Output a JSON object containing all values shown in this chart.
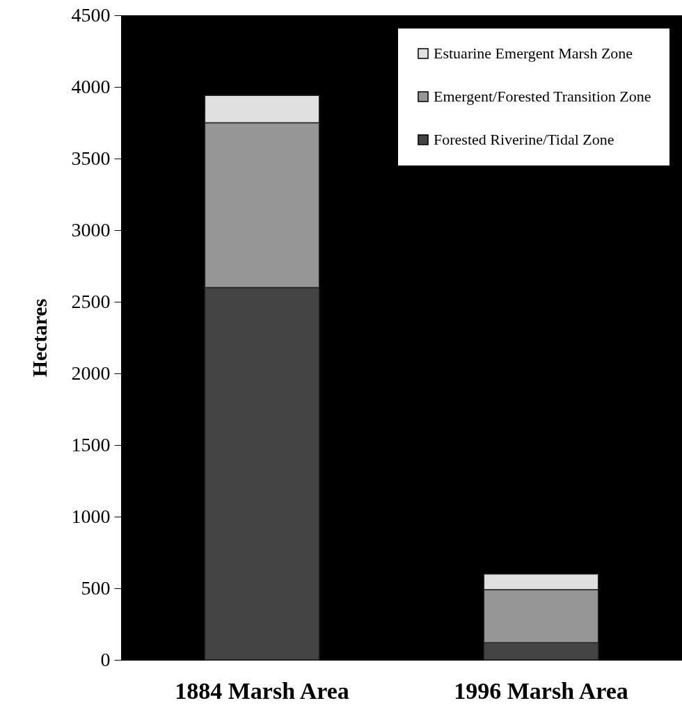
{
  "chart_data": {
    "type": "bar",
    "ylabel": "Hectares",
    "categories": [
      "1884 Marsh Area",
      "1996 Marsh Area"
    ],
    "stacked": true,
    "series": [
      {
        "name": "Forested Riverine/Tidal Zone",
        "color": "#444444",
        "values": [
          2600,
          120
        ]
      },
      {
        "name": "Emergent/Forested Transition Zone",
        "color": "#969696",
        "values": [
          1150,
          370
        ]
      },
      {
        "name": "Estuarine Emergent Marsh Zone",
        "color": "#e0e0e0",
        "values": [
          190,
          110
        ]
      }
    ],
    "ylim": [
      0,
      4500
    ],
    "yticks": [
      0,
      500,
      1000,
      1500,
      2000,
      2500,
      3000,
      3500,
      4000,
      4500
    ],
    "grid": false,
    "legend": "top right"
  }
}
